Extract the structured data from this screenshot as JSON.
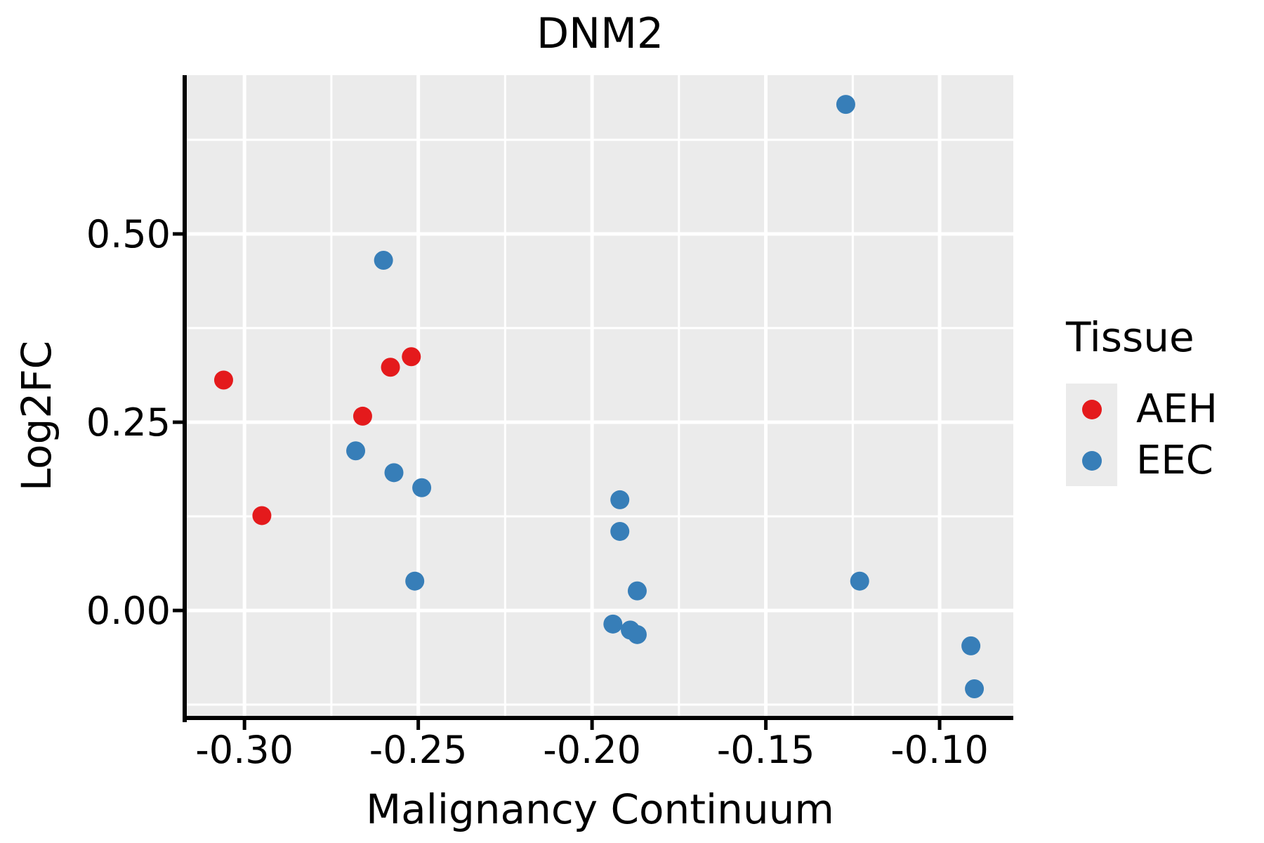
{
  "title": "DNM2",
  "axes": {
    "x_label": "Malignancy Continuum",
    "y_label": "Log2FC"
  },
  "legend": {
    "title": "Tissue",
    "entries": [
      {
        "label": "AEH",
        "color": "#E41A1C"
      },
      {
        "label": "EEC",
        "color": "#377EB8"
      }
    ]
  },
  "colors": {
    "panel_bg": "#EBEBEB",
    "grid": "#FFFFFF",
    "axis_line": "#000000",
    "tick_text": "#000000",
    "aeh": "#E41A1C",
    "eec": "#377EB8"
  },
  "chart_data": {
    "type": "scatter",
    "title": "DNM2",
    "xlabel": "Malignancy Continuum",
    "ylabel": "Log2FC",
    "xlim": [
      -0.3166,
      -0.0788
    ],
    "ylim": [
      -0.1427,
      0.7108
    ],
    "x_ticks": [
      -0.3,
      -0.25,
      -0.2,
      -0.15,
      -0.1
    ],
    "x_tick_labels": [
      "-0.30",
      "-0.25",
      "-0.20",
      "-0.15",
      "-0.10"
    ],
    "x_minor_ticks": [
      -0.275,
      -0.225,
      -0.175,
      -0.125
    ],
    "y_ticks": [
      0.0,
      0.25,
      0.5
    ],
    "y_tick_labels": [
      "0.00",
      "0.25",
      "0.50"
    ],
    "y_minor_ticks": [
      -0.125,
      0.125,
      0.375,
      0.625
    ],
    "grid": true,
    "legend_position": "right",
    "series": [
      {
        "name": "AEH",
        "color": "#E41A1C",
        "points": [
          [
            -0.306,
            0.306
          ],
          [
            -0.295,
            0.126
          ],
          [
            -0.266,
            0.258
          ],
          [
            -0.258,
            0.323
          ],
          [
            -0.252,
            0.337
          ]
        ]
      },
      {
        "name": "EEC",
        "color": "#377EB8",
        "points": [
          [
            -0.26,
            0.465
          ],
          [
            -0.268,
            0.212
          ],
          [
            -0.257,
            0.183
          ],
          [
            -0.249,
            0.163
          ],
          [
            -0.251,
            0.039
          ],
          [
            -0.192,
            0.147
          ],
          [
            -0.192,
            0.105
          ],
          [
            -0.187,
            0.026
          ],
          [
            -0.194,
            -0.018
          ],
          [
            -0.189,
            -0.026
          ],
          [
            -0.187,
            -0.032
          ],
          [
            -0.127,
            0.672
          ],
          [
            -0.123,
            0.039
          ],
          [
            -0.091,
            -0.047
          ],
          [
            -0.09,
            -0.104
          ]
        ]
      }
    ]
  }
}
